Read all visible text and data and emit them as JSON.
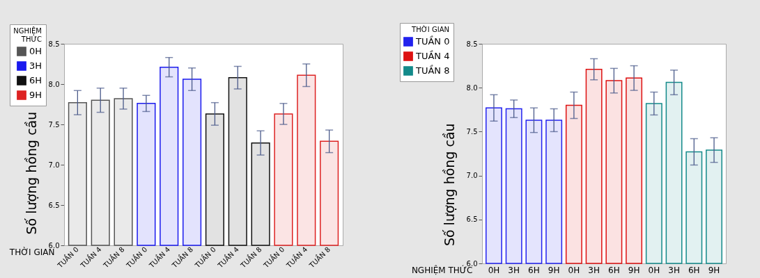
{
  "chart_data": [
    {
      "type": "bar",
      "xlabel": "THỜI GIAN",
      "ylabel": "Số lượng hồng cầu",
      "legend_title": "NGHIỆM THỨC",
      "legend": "top left",
      "categories": [
        "TUẦN 0",
        "TUẦN 4",
        "TUẦN 8",
        "TUẦN 0",
        "TUẦN 4",
        "TUẦN 8",
        "TUẦN 0",
        "TUẦN 4",
        "TUẦN 8",
        "TUẦN 0",
        "TUẦN 4",
        "TUẦN 8"
      ],
      "ylim": [
        6,
        8.5
      ],
      "yticks": [
        {
          "value": 6,
          "label": "6.0"
        },
        {
          "value": 6.5,
          "label": "6.5"
        },
        {
          "value": 7,
          "label": "7.0"
        },
        {
          "value": 7.5,
          "label": "7.5"
        },
        {
          "value": 8,
          "label": "8.0"
        },
        {
          "value": 8.5,
          "label": "8.5"
        }
      ],
      "grid": false,
      "series": [
        {
          "name": "0H",
          "color": "#555555",
          "values": [
            7.77,
            7.8,
            7.82,
            null,
            null,
            null,
            null,
            null,
            null,
            null,
            null,
            null
          ],
          "errors": [
            0.15,
            0.15,
            0.13,
            null,
            null,
            null,
            null,
            null,
            null,
            null,
            null,
            null
          ]
        },
        {
          "name": "3H",
          "color": "#1a1aee",
          "values": [
            null,
            null,
            null,
            7.76,
            8.21,
            8.06,
            null,
            null,
            null,
            null,
            null,
            null
          ],
          "errors": [
            null,
            null,
            null,
            0.1,
            0.12,
            0.14,
            null,
            null,
            null,
            null,
            null,
            null
          ]
        },
        {
          "name": "6H",
          "color": "#111111",
          "values": [
            null,
            null,
            null,
            null,
            null,
            null,
            7.63,
            8.08,
            7.27,
            null,
            null,
            null
          ],
          "errors": [
            null,
            null,
            null,
            null,
            null,
            null,
            0.14,
            0.14,
            0.15,
            null,
            null,
            null
          ]
        },
        {
          "name": "9H",
          "color": "#dd2222",
          "values": [
            null,
            null,
            null,
            null,
            null,
            null,
            null,
            null,
            null,
            7.63,
            8.11,
            7.29
          ],
          "errors": [
            null,
            null,
            null,
            null,
            null,
            null,
            null,
            null,
            null,
            0.13,
            0.14,
            0.14
          ]
        }
      ]
    },
    {
      "type": "bar",
      "xlabel": "NGHIỆM THỨC",
      "ylabel": "Số lượng hồng cầu",
      "legend_title": "THỜI GIAN",
      "legend": "top left",
      "categories": [
        "0H",
        "3H",
        "6H",
        "9H",
        "0H",
        "3H",
        "6H",
        "9H",
        "0H",
        "3H",
        "6H",
        "9H"
      ],
      "ylim": [
        6,
        8.5
      ],
      "yticks": [
        {
          "value": 6,
          "label": "6.0"
        },
        {
          "value": 6.5,
          "label": "6.5"
        },
        {
          "value": 7,
          "label": "7.0"
        },
        {
          "value": 7.5,
          "label": "7.5"
        },
        {
          "value": 8,
          "label": "8.0"
        },
        {
          "value": 8.5,
          "label": "8.5"
        }
      ],
      "grid": false,
      "series": [
        {
          "name": "TUẦN 0",
          "color": "#2222ee",
          "values": [
            7.77,
            7.76,
            7.63,
            7.63,
            null,
            null,
            null,
            null,
            null,
            null,
            null,
            null
          ],
          "errors": [
            0.15,
            0.1,
            0.14,
            0.13,
            null,
            null,
            null,
            null,
            null,
            null,
            null,
            null
          ]
        },
        {
          "name": "TUẦN 4",
          "color": "#dd1111",
          "values": [
            null,
            null,
            null,
            null,
            7.8,
            8.21,
            8.08,
            8.11,
            null,
            null,
            null,
            null
          ],
          "errors": [
            null,
            null,
            null,
            null,
            0.15,
            0.12,
            0.14,
            0.14,
            null,
            null,
            null,
            null
          ]
        },
        {
          "name": "TUẦN 8",
          "color": "#138a8a",
          "values": [
            null,
            null,
            null,
            null,
            null,
            null,
            null,
            null,
            7.82,
            8.06,
            7.27,
            7.29
          ],
          "errors": [
            null,
            null,
            null,
            null,
            null,
            null,
            null,
            null,
            0.13,
            0.14,
            0.15,
            0.14
          ]
        }
      ]
    }
  ]
}
